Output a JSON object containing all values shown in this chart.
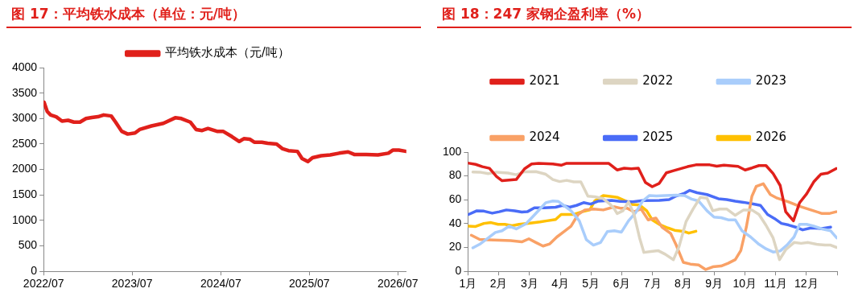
{
  "chart_data": [
    {
      "type": "line",
      "title": "图 17：平均铁水成本（单位：元/吨）",
      "legend": "top",
      "grid": false,
      "marker": "none",
      "x": [
        "2022-07-03",
        "2022-07-16",
        "2022-07-30",
        "2022-08-22",
        "2022-09-15",
        "2022-10-10",
        "2022-11-03",
        "2022-11-28",
        "2022-12-23",
        "2023-01-16",
        "2023-02-10",
        "2023-03-06",
        "2023-04-06",
        "2023-04-24",
        "2023-05-19",
        "2023-06-13",
        "2023-07-13",
        "2023-08-01",
        "2023-09-19",
        "2023-11-07",
        "2023-12-26",
        "2024-01-20",
        "2024-02-26",
        "2024-03-21",
        "2024-04-15",
        "2024-05-09",
        "2024-06-15",
        "2024-07-10",
        "2024-08-16",
        "2024-09-15",
        "2024-10-04",
        "2024-10-28",
        "2024-11-16",
        "2024-12-17",
        "2025-01-10",
        "2025-02-16",
        "2025-03-13",
        "2025-04-06",
        "2025-05-13",
        "2025-06-01",
        "2025-06-25",
        "2025-07-14",
        "2025-08-19",
        "2025-09-25",
        "2025-11-01",
        "2025-12-08",
        "2026-01-02",
        "2026-02-20",
        "2026-04-10",
        "2026-05-23",
        "2026-06-10",
        "2026-07-05",
        "2026-08-05"
      ],
      "series": [
        {
          "name": "平均铁水成本（元/吨）",
          "color": "#e0201b",
          "values": [
            3320,
            3140,
            3070,
            3035,
            2950,
            2965,
            2930,
            2930,
            3000,
            3020,
            3035,
            3070,
            3050,
            2930,
            2750,
            2695,
            2715,
            2785,
            2855,
            2905,
            3015,
            3000,
            2930,
            2785,
            2765,
            2805,
            2750,
            2750,
            2645,
            2550,
            2605,
            2595,
            2535,
            2535,
            2515,
            2500,
            2405,
            2370,
            2355,
            2215,
            2155,
            2230,
            2270,
            2285,
            2320,
            2345,
            2295,
            2295,
            2285,
            2320,
            2380,
            2380,
            2355
          ]
        }
      ],
      "xlim": [
        "2022-07-01",
        "2026-08-05"
      ],
      "xticks": [
        {
          "value": "2022-07",
          "label": "2022/07"
        },
        {
          "value": "2023-07",
          "label": "2023/07"
        },
        {
          "value": "2024-07",
          "label": "2024/07"
        },
        {
          "value": "2025-07",
          "label": "2025/07"
        },
        {
          "value": "2026-07",
          "label": "2026/07"
        }
      ],
      "ylim": [
        0,
        4000
      ],
      "yticks": [
        0,
        500,
        1000,
        1500,
        2000,
        2500,
        3000,
        3500,
        4000
      ]
    },
    {
      "type": "line",
      "title": "图 18：247 家钢企盈利率（%）",
      "legend": "top",
      "grid": false,
      "marker": "none",
      "xlim": [
        1,
        13
      ],
      "xticks": [
        {
          "value": 1,
          "label": "1月"
        },
        {
          "value": 2,
          "label": "2月"
        },
        {
          "value": 3,
          "label": "3月"
        },
        {
          "value": 4,
          "label": "4月"
        },
        {
          "value": 5,
          "label": "5月"
        },
        {
          "value": 6,
          "label": "6月"
        },
        {
          "value": 7,
          "label": "7月"
        },
        {
          "value": 8,
          "label": "8月"
        },
        {
          "value": 9,
          "label": "9月"
        },
        {
          "value": 10,
          "label": "10月"
        },
        {
          "value": 11,
          "label": "11月"
        },
        {
          "value": 12,
          "label": "12月"
        },
        {
          "value": 13,
          "label": null
        }
      ],
      "ylim": [
        0,
        100
      ],
      "yticks": [
        0,
        20,
        40,
        60,
        80,
        100
      ],
      "series": [
        {
          "name": "2021",
          "color": "#e0201b",
          "x": [
            1.0,
            1.25,
            1.47,
            1.7,
            1.93,
            2.11,
            2.57,
            2.84,
            3.07,
            3.3,
            3.76,
            4.03,
            4.21,
            4.49,
            5.58,
            5.85,
            6.08,
            6.31,
            6.54,
            6.77,
            6.99,
            7.22,
            7.45,
            7.68,
            8.14,
            8.41,
            8.86,
            9.09,
            9.32,
            9.78,
            10.01,
            10.23,
            10.46,
            10.69,
            10.92,
            11.15,
            11.33,
            11.58,
            11.78,
            12.01,
            12.24,
            12.47,
            12.7,
            12.97
          ],
          "values": [
            90.8,
            89.7,
            87.8,
            86.4,
            79.5,
            76,
            77,
            86,
            90,
            90.6,
            90,
            89,
            90.6,
            90.5,
            90.5,
            85,
            86.5,
            86,
            86.5,
            74.5,
            71,
            73.8,
            82.6,
            84.4,
            87.8,
            89.3,
            89.3,
            88.2,
            89,
            88,
            85,
            86.7,
            88.7,
            88.7,
            82,
            72,
            50,
            42.4,
            57.5,
            65,
            75,
            81.4,
            82.4,
            86.2
          ]
        },
        {
          "name": "2022",
          "color": "#ddd5c2",
          "x": [
            1.16,
            1.38,
            1.66,
            1.93,
            2.3,
            2.57,
            2.84,
            3.21,
            3.53,
            3.76,
            3.98,
            4.21,
            4.44,
            4.67,
            4.9,
            5.12,
            5.4,
            5.63,
            5.76,
            5.85,
            6.04,
            6.22,
            6.4,
            6.58,
            6.72,
            6.95,
            7.18,
            7.41,
            7.68,
            7.86,
            8.09,
            8.32,
            8.55,
            8.77,
            8.96,
            9.18,
            9.41,
            9.69,
            9.96,
            10.23,
            10.46,
            10.69,
            10.92,
            11.13,
            11.33,
            11.6,
            11.83,
            12.06,
            12.33,
            12.61,
            12.79,
            12.99
          ],
          "values": [
            83.3,
            83.2,
            82,
            83.2,
            82.4,
            81,
            83.5,
            83.6,
            81.4,
            77,
            75.3,
            76.3,
            75,
            75,
            63,
            62.6,
            61,
            56,
            52.3,
            48.5,
            50.8,
            58.3,
            47.7,
            28,
            15.9,
            16.7,
            17.4,
            14.4,
            9.8,
            20.5,
            41.7,
            52.3,
            62,
            61.4,
            50.8,
            52.3,
            52.3,
            47,
            51.5,
            51.5,
            47.7,
            38.6,
            28,
            9.8,
            18.2,
            24.2,
            23.5,
            24.2,
            22.7,
            22,
            22,
            20
          ]
        },
        {
          "name": "2023",
          "color": "#a9cdfb",
          "x": [
            1.16,
            1.38,
            1.66,
            1.89,
            2.11,
            2.34,
            2.57,
            2.89,
            3.12,
            3.34,
            3.53,
            3.76,
            3.94,
            4.12,
            4.35,
            4.62,
            4.85,
            5.08,
            5.31,
            5.53,
            5.76,
            5.99,
            6.22,
            6.45,
            6.68,
            6.9,
            7.13,
            7.41,
            7.77,
            8.04,
            8.27,
            8.5,
            8.77,
            9.0,
            9.23,
            9.46,
            9.69,
            9.91,
            10.19,
            10.46,
            10.69,
            10.92,
            11.15,
            11.37,
            11.6,
            11.78,
            12.01,
            12.24,
            12.51,
            12.79,
            12.99
          ],
          "values": [
            19.7,
            22.7,
            28,
            32.6,
            34,
            37.9,
            35.6,
            40,
            46.2,
            52.3,
            57.6,
            59,
            58.6,
            55.3,
            50.8,
            42.4,
            26.5,
            22,
            24.2,
            33.3,
            34,
            32.9,
            42.4,
            49.2,
            59,
            63.6,
            63.2,
            63.6,
            63.9,
            63.6,
            60.6,
            59,
            50.8,
            45.5,
            45,
            43.2,
            43.2,
            34,
            28.8,
            22.7,
            18.9,
            16.2,
            17.1,
            22,
            28.8,
            39.4,
            39.4,
            37.9,
            35.6,
            34,
            28
          ]
        },
        {
          "name": "2024",
          "color": "#f9a166",
          "x": [
            1.11,
            1.38,
            1.66,
            2.02,
            2.39,
            2.75,
            2.98,
            3.21,
            3.44,
            3.66,
            3.89,
            4.12,
            4.35,
            4.58,
            4.8,
            5.08,
            5.4,
            5.76,
            5.95,
            6.17,
            6.4,
            6.63,
            6.86,
            7.11,
            7.31,
            7.59,
            7.77,
            8.0,
            8.23,
            8.5,
            8.73,
            8.96,
            9.23,
            9.46,
            9.69,
            9.87,
            10.05,
            10.23,
            10.37,
            10.6,
            10.83,
            11.05,
            11.42,
            11.78,
            12.15,
            12.51,
            12.74,
            12.97
          ],
          "values": [
            30.3,
            26.8,
            26.5,
            26.1,
            25.8,
            24.7,
            27.3,
            24.2,
            21.2,
            23,
            28.8,
            33.3,
            37.9,
            47.7,
            51.5,
            52.3,
            51.5,
            54.1,
            53,
            53,
            50,
            52.3,
            43.2,
            44.7,
            37.1,
            31.8,
            22,
            7.6,
            6.1,
            5.3,
            1.5,
            3.8,
            4.5,
            6.8,
            9.8,
            17.4,
            37.1,
            62.9,
            71.2,
            73.5,
            64.4,
            61.4,
            58.3,
            54.5,
            51.5,
            48.5,
            48.5,
            50
          ]
        },
        {
          "name": "2025",
          "color": "#4a6cf7",
          "x": [
            1.02,
            1.29,
            1.52,
            1.79,
            2.02,
            2.25,
            2.52,
            2.75,
            2.93,
            3.16,
            3.48,
            3.85,
            4.07,
            4.3,
            4.53,
            4.76,
            4.99,
            5.22,
            5.67,
            5.95,
            6.36,
            6.68,
            7.22,
            7.54,
            7.77,
            8.04,
            8.21,
            8.45,
            8.77,
            9.14,
            9.41,
            9.69,
            9.96,
            10.28,
            10.51,
            10.74,
            10.96,
            11.19,
            11.42,
            11.65,
            11.88,
            12.15,
            12.51,
            12.79
          ],
          "values": [
            47.7,
            50.8,
            50.5,
            48.8,
            50,
            51.5,
            50.8,
            49.7,
            50,
            53.3,
            53.3,
            53.8,
            55.3,
            53.8,
            55.3,
            57.6,
            56.4,
            58.8,
            59.5,
            58.6,
            58.3,
            59.4,
            59.5,
            60.2,
            63.2,
            65.5,
            67.9,
            65.9,
            64.4,
            60.9,
            60.2,
            58.8,
            57.9,
            56.5,
            55.3,
            47.7,
            44.4,
            40.2,
            38.9,
            37.1,
            34.8,
            36.4,
            35.9,
            37.1
          ]
        },
        {
          "name": "2026",
          "color": "#ffc000",
          "x": [
            1.02,
            1.25,
            1.52,
            1.75,
            1.98,
            2.2,
            2.43,
            2.66,
            3.03,
            3.34,
            3.57,
            3.85,
            4.03,
            4.44,
            4.71,
            4.96,
            5.12,
            5.4,
            5.85,
            6.13,
            6.33,
            6.58,
            6.81,
            6.99,
            7.22,
            7.5,
            7.72,
            8.0,
            8.18,
            8.41
          ],
          "values": [
            37.9,
            37.6,
            40.2,
            40.9,
            39.4,
            39.4,
            38.3,
            39.4,
            40.5,
            41.4,
            42.4,
            43.5,
            47.7,
            47.7,
            50,
            51.5,
            59,
            63.6,
            62.1,
            59,
            56.1,
            55.6,
            50.8,
            43.2,
            39.4,
            36.4,
            34.4,
            33.6,
            32.1,
            33.6
          ]
        }
      ]
    }
  ]
}
